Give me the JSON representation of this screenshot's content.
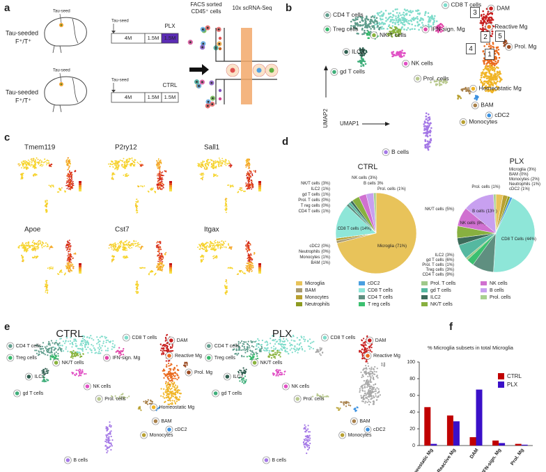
{
  "panels": {
    "a": {
      "letter": "a",
      "facs": [
        "FACS sorted",
        "CD45⁺ cells"
      ],
      "seq": "10x scRNA-Seq",
      "rows": [
        {
          "seed": "Tau-seed",
          "mouse": [
            "Tau-seeded",
            "F⁺/T⁺"
          ],
          "timeline": [
            "4M",
            "1.5M",
            "1.5M"
          ],
          "treatment": "PLX",
          "color": "#5b2bb5"
        },
        {
          "seed": "Tau-seed",
          "mouse": [
            "Tau-seeded",
            "F⁺/T⁺"
          ],
          "timeline": [
            "4M",
            "1.5M",
            "1.5M"
          ],
          "treatment": "CTRL",
          "color": "#c00000"
        }
      ]
    },
    "b": {
      "letter": "b",
      "labels": [
        "CD8 T cells",
        "CD4 T cells",
        "Treg cells",
        "NK/T cells",
        "IFN-sign. Mg",
        "DAM",
        "Reactive Mg",
        "Prol. Mg",
        "Homeostatic Mg",
        "ILC2",
        "gd T cells",
        "NK cells",
        "Prol. cells",
        "BAM",
        "cDC2",
        "Monocytes",
        "B cells"
      ],
      "subsets": [
        "1",
        "2",
        "3",
        "4",
        "5"
      ],
      "axes": [
        "UMAP1",
        "UMAP2"
      ]
    },
    "c": {
      "letter": "c",
      "genes": [
        "Tmem119",
        "P2ry12",
        "Sall1",
        "Apoe",
        "Cst7",
        "Itgax"
      ]
    },
    "d": {
      "letter": "d",
      "legend": [
        {
          "name": "Microglia",
          "color": "#e8c35a"
        },
        {
          "name": "cDC2",
          "color": "#4a9fe0"
        },
        {
          "name": "Prol. T cells",
          "color": "#9fc98a"
        },
        {
          "name": "NK cells",
          "color": "#d070d0"
        },
        {
          "name": "BAM",
          "color": "#a89a70"
        },
        {
          "name": "CD8 T cells",
          "color": "#8ee6d8"
        },
        {
          "name": "gd T cells",
          "color": "#55b8a0"
        },
        {
          "name": "B cells",
          "color": "#c8a0f0"
        },
        {
          "name": "Monocytes",
          "color": "#b8a030"
        },
        {
          "name": "CD4 T cells",
          "color": "#5f8f80"
        },
        {
          "name": "ILC2",
          "color": "#3c6b5a"
        },
        {
          "name": "Prol. cells",
          "color": "#a8d090"
        },
        {
          "name": "Neutrophils",
          "color": "#8c9a20"
        },
        {
          "name": "T reg cells",
          "color": "#3cc070"
        },
        {
          "name": "NK/T cells",
          "color": "#88b040"
        }
      ]
    },
    "e": {
      "letter": "e",
      "maps": [
        {
          "title": "CTRL",
          "color": "#c00000",
          "labels": [
            "CD8 T cells",
            "CD4 T cells",
            "Treg cells",
            "NK/T cells",
            "IFN-sign. Mg",
            "DAM",
            "Reactive Mg",
            "Prol. Mg",
            "Homeostatic Mg",
            "ILC2",
            "gd T cells",
            "NK cells",
            "Prol. cells",
            "BAM",
            "cDC2",
            "Monocytes",
            "B cells"
          ]
        },
        {
          "title": "PLX",
          "color": "#3a10c8",
          "labels": [
            "CD8 T cells",
            "CD4 T cells",
            "Treg cells",
            "NK/T cells",
            "DAM",
            "Reactive Mg",
            "ILC2",
            "gd T cells",
            "NK cells",
            "Prol. cells",
            "BAM",
            "cDC2",
            "Monocytes",
            "B cells"
          ]
        }
      ]
    },
    "f": {
      "letter": "f"
    }
  },
  "chart_data": [
    {
      "type": "pie",
      "title": "CTRL",
      "title_color": "#c00000",
      "categories": [
        "Microglia",
        "BAM",
        "Monocytes",
        "Neutrophils",
        "cDC2",
        "CD8 T cells",
        "CD4 T cells",
        "T reg cells",
        "Prol. T cells",
        "gd T cells",
        "ILC2",
        "NK/T cells",
        "NK cells",
        "B cells",
        "Prol. cells"
      ],
      "values": [
        71,
        1,
        1,
        0,
        0,
        14,
        1,
        0,
        0,
        1,
        1,
        3,
        3,
        3,
        1
      ],
      "value_labels": [
        "(71%)",
        "(1%)",
        "(1%)",
        "(0%)",
        "(0%)",
        "(14%)",
        "(1%)",
        "(0%)",
        "(0%)",
        "(1%)",
        "(1%)",
        "(3%)",
        "(3%)",
        "3%",
        "(1%)"
      ],
      "colors": [
        "#e8c35a",
        "#a89a70",
        "#b8a030",
        "#8c9a20",
        "#4a9fe0",
        "#8ee6d8",
        "#5f8f80",
        "#3cc070",
        "#9fc98a",
        "#55b8a0",
        "#3c6b5a",
        "#88b040",
        "#d070d0",
        "#c8a0f0",
        "#a8d090"
      ]
    },
    {
      "type": "pie",
      "title": "PLX",
      "title_color": "#3a10c8",
      "categories": [
        "Microglia",
        "BAM",
        "Monocytes",
        "Neutrophils",
        "cDC2",
        "CD8 T Cells",
        "CD4 T cells",
        "Treg cells",
        "Prol. T cells",
        "gd T cells",
        "ILC2",
        "NK/T cells",
        "NK cells",
        "B cells",
        "Prol. cells"
      ],
      "values": [
        3,
        0,
        2,
        1,
        1,
        44,
        9,
        3,
        1,
        6,
        3,
        5,
        8,
        13,
        1
      ],
      "value_labels": [
        "(3%)",
        "(0%)",
        "(2%)",
        "(1%)",
        "(1%)",
        "(44%)",
        "(9%)",
        "(3%)",
        "(1%)",
        "(6%)",
        "(3%)",
        "(5%)",
        "(8%)",
        "(13%)",
        "(1%)"
      ],
      "colors": [
        "#e8c35a",
        "#a89a70",
        "#b8a030",
        "#8c9a20",
        "#4a9fe0",
        "#8ee6d8",
        "#5f8f80",
        "#3cc070",
        "#9fc98a",
        "#55b8a0",
        "#3c6b5a",
        "#88b040",
        "#d070d0",
        "#c8a0f0",
        "#a8d090"
      ]
    },
    {
      "type": "bar",
      "title": "% Microglia subsets in total Microglia",
      "categories": [
        "Homeostatic Mg",
        "Reactive Mg",
        "DAM",
        "IFN-sign. Mg",
        "Prol. Mg"
      ],
      "series": [
        {
          "name": "CTRL",
          "color": "#c00000",
          "values": [
            46,
            36,
            10,
            6,
            2
          ]
        },
        {
          "name": "PLX",
          "color": "#3a10c8",
          "values": [
            2,
            29,
            67,
            3,
            1
          ]
        }
      ],
      "ylim": [
        0,
        100
      ],
      "yticks": [
        0,
        20,
        40,
        60,
        80,
        100
      ],
      "grid": false,
      "legend": "upper right"
    }
  ]
}
